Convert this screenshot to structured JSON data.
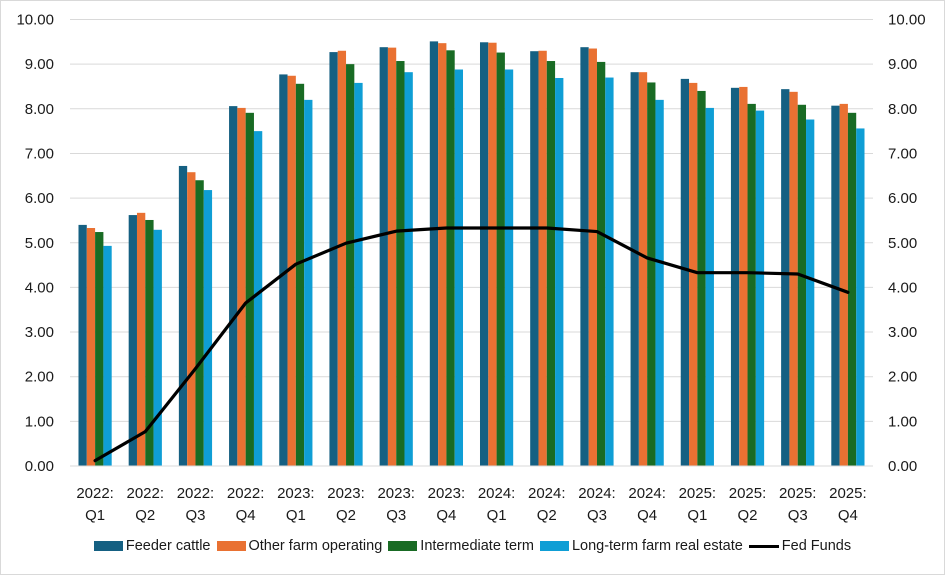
{
  "chart_data": {
    "type": "bar",
    "title": "",
    "xlabel": "",
    "ylabel": "",
    "ylim": [
      0,
      10
    ],
    "y2lim": [
      0,
      10
    ],
    "yticks": [
      "0.00",
      "1.00",
      "2.00",
      "3.00",
      "4.00",
      "5.00",
      "6.00",
      "7.00",
      "8.00",
      "9.00",
      "10.00"
    ],
    "grid": true,
    "legend_position": "bottom",
    "categories": [
      {
        "year": "2022:",
        "quarter": "Q1"
      },
      {
        "year": "2022:",
        "quarter": "Q2"
      },
      {
        "year": "2022:",
        "quarter": "Q3"
      },
      {
        "year": "2022:",
        "quarter": "Q4"
      },
      {
        "year": "2023:",
        "quarter": "Q1"
      },
      {
        "year": "2023:",
        "quarter": "Q2"
      },
      {
        "year": "2023:",
        "quarter": "Q3"
      },
      {
        "year": "2023:",
        "quarter": "Q4"
      },
      {
        "year": "2024:",
        "quarter": "Q1"
      },
      {
        "year": "2024:",
        "quarter": "Q2"
      },
      {
        "year": "2024:",
        "quarter": "Q3"
      },
      {
        "year": "2024:",
        "quarter": "Q4"
      },
      {
        "year": "2025:",
        "quarter": "Q1"
      },
      {
        "year": "2025:",
        "quarter": "Q2"
      },
      {
        "year": "2025:",
        "quarter": "Q3"
      },
      {
        "year": "2025:",
        "quarter": "Q4"
      }
    ],
    "series": [
      {
        "name": "Feeder cattle",
        "type": "bar",
        "color": "#156082",
        "values": [
          5.4,
          5.62,
          6.72,
          8.06,
          8.77,
          9.27,
          9.38,
          9.51,
          9.49,
          9.29,
          9.38,
          8.82,
          8.67,
          8.47,
          8.44,
          8.07
        ]
      },
      {
        "name": "Other farm operating",
        "type": "bar",
        "color": "#E97132",
        "values": [
          5.33,
          5.67,
          6.58,
          8.02,
          8.74,
          9.3,
          9.37,
          9.47,
          9.48,
          9.3,
          9.35,
          8.82,
          8.58,
          8.49,
          8.38,
          8.11
        ]
      },
      {
        "name": "Intermediate term",
        "type": "bar",
        "color": "#196B24",
        "values": [
          5.24,
          5.51,
          6.4,
          7.91,
          8.56,
          9.0,
          9.07,
          9.31,
          9.26,
          9.07,
          9.05,
          8.59,
          8.4,
          8.11,
          8.09,
          7.91
        ]
      },
      {
        "name": "Long-term farm real estate",
        "type": "bar",
        "color": "#0F9ED5",
        "values": [
          4.93,
          5.29,
          6.18,
          7.5,
          8.2,
          8.58,
          8.82,
          8.88,
          8.88,
          8.69,
          8.7,
          8.2,
          8.02,
          7.96,
          7.76,
          7.56
        ]
      },
      {
        "name": "Fed Funds",
        "type": "line",
        "color": "#000000",
        "values": [
          0.12,
          0.77,
          2.18,
          3.65,
          4.52,
          4.99,
          5.26,
          5.33,
          5.33,
          5.33,
          5.25,
          4.66,
          4.33,
          4.33,
          4.3,
          3.89
        ]
      }
    ]
  }
}
